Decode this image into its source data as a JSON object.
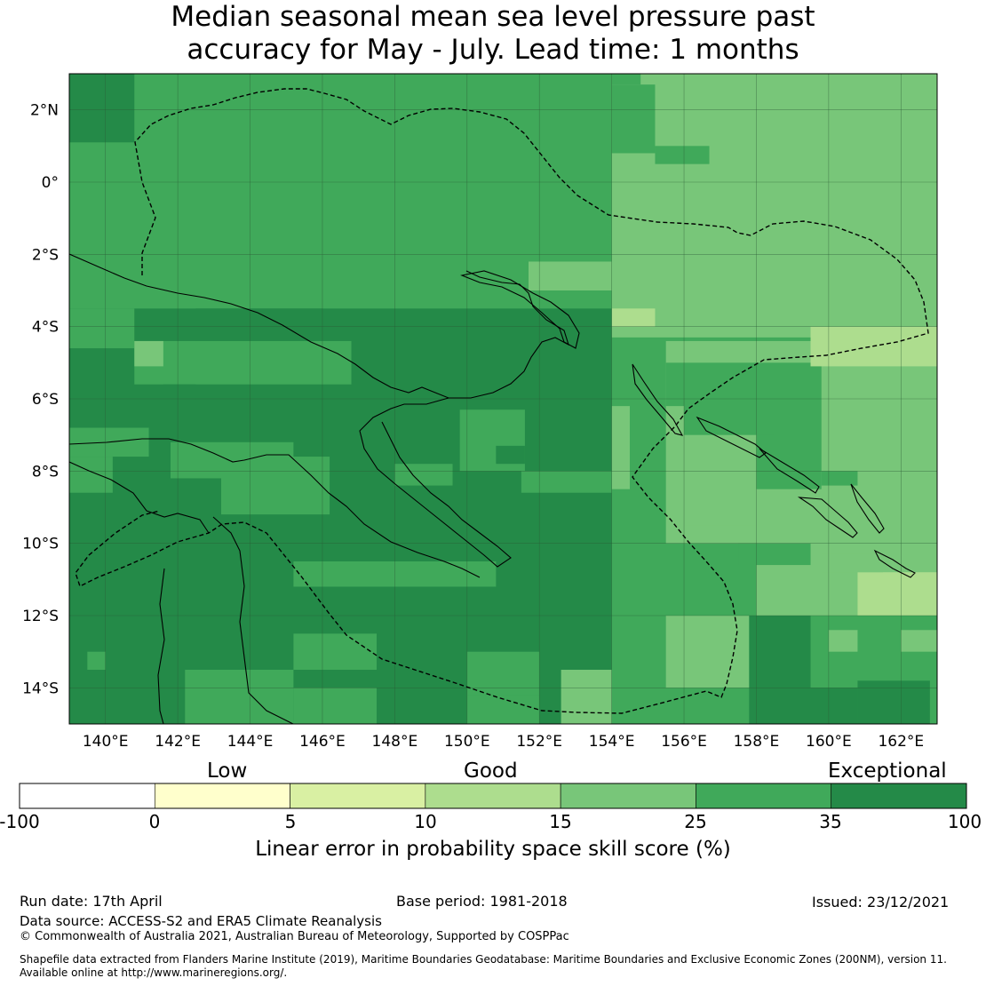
{
  "title": {
    "line1": "Median seasonal mean sea level pressure past",
    "line2": "accuracy for May - July. Lead time: 1 months"
  },
  "map": {
    "lon_range": [
      139,
      163
    ],
    "lat_range": [
      -15,
      3
    ],
    "lon_ticks": [
      "140°E",
      "142°E",
      "144°E",
      "146°E",
      "148°E",
      "150°E",
      "152°E",
      "154°E",
      "156°E",
      "158°E",
      "160°E",
      "162°E"
    ],
    "lat_ticks": [
      "2°N",
      "0°",
      "2°S",
      "4°S",
      "6°S",
      "8°S",
      "10°S",
      "12°S",
      "14°S"
    ],
    "grid": true,
    "category_colors": {
      "c35_100": "#248a48",
      "c25_35": "#40a95a",
      "c15_25": "#78c679",
      "c10_15": "#addd8e",
      "c5_10": "#d9f0a3",
      "c0_5": "#ffffcc"
    },
    "dominant_category_by_region": {
      "north_west": "c25_35",
      "central_west_and_south": "c35_100",
      "east_and_north_east": "c15_25",
      "far_east_pockets": "c10_15"
    }
  },
  "colorbar": {
    "categories": [
      "Low",
      "Good",
      "Exceptional"
    ],
    "boundaries": [
      "-100",
      "0",
      "5",
      "10",
      "15",
      "25",
      "35",
      "100"
    ],
    "colors": [
      "#ffffff",
      "#ffffcc",
      "#d9f0a3",
      "#addd8e",
      "#78c679",
      "#40a95a",
      "#248a48"
    ],
    "label": "Linear error in probability space skill score (%)"
  },
  "footer": {
    "run_date": "Run date: 17th April",
    "base_period": "Base period: 1981-2018",
    "issued": "Issued: 23/12/2021",
    "data_source": "Data source: ACCESS-S2 and ERA5 Climate Reanalysis",
    "copyright": "© Commonwealth of Australia 2021, Australian Bureau of Meteorology, Supported by COSPPac",
    "shapefile_line1": "Shapefile data extracted from Flanders Marine Institute (2019), Maritime Boundaries Geodatabase: Maritime Boundaries and Exclusive Economic Zones (200NM), version 11.",
    "shapefile_line2": "Available online at http://www.marineregions.org/."
  }
}
